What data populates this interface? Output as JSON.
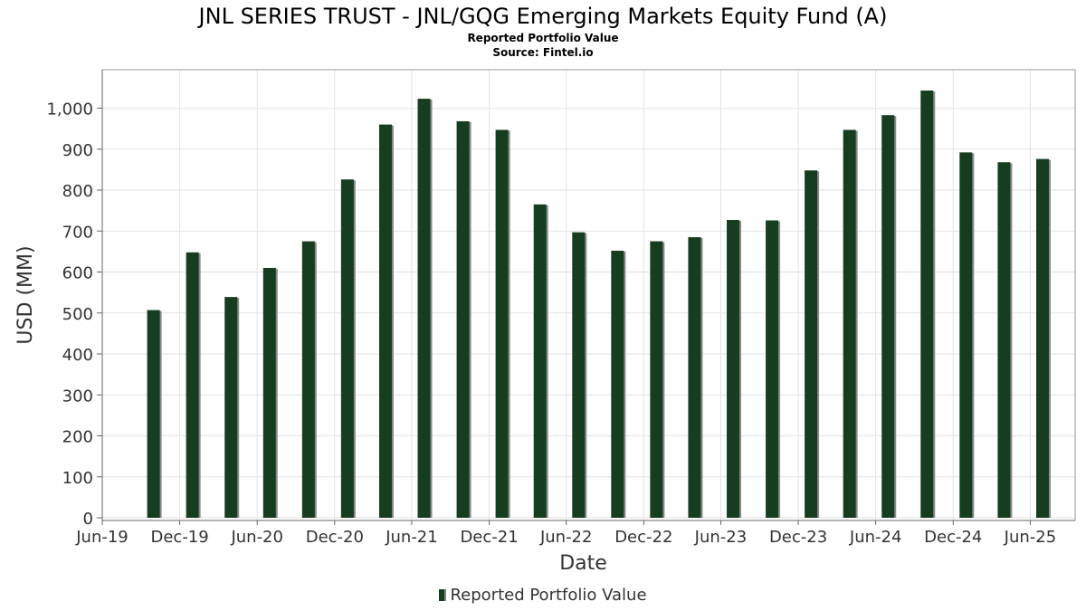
{
  "header": {
    "title": "JNL SERIES TRUST - JNL/GQG Emerging Markets Equity Fund (A)",
    "subtitle": "Reported Portfolio Value",
    "source": "Source: Fintel.io"
  },
  "legend": {
    "label": "Reported Portfolio Value"
  },
  "colors": {
    "bar": "#173d21",
    "bar_shadow": "#8a8a8a",
    "grid": "#e2e2e2",
    "plot_border": "#999999"
  },
  "chart_data": {
    "type": "bar",
    "title": "JNL SERIES TRUST - JNL/GQG Emerging Markets Equity Fund (A)",
    "subtitle": "Reported Portfolio Value",
    "xlabel": "Date",
    "ylabel": "USD (MM)",
    "ylim": [
      0,
      1100
    ],
    "yticks": [
      0,
      100,
      200,
      300,
      400,
      500,
      600,
      700,
      800,
      900,
      1000
    ],
    "ytick_labels": [
      "0",
      "100",
      "200",
      "300",
      "400",
      "500",
      "600",
      "700",
      "800",
      "900",
      "1,000"
    ],
    "xlim": [
      "2019-06-01",
      "2025-09-15"
    ],
    "xticks": [
      {
        "date": "2019-06-01",
        "label": "Jun-19"
      },
      {
        "date": "2019-12-01",
        "label": "Dec-19"
      },
      {
        "date": "2020-06-01",
        "label": "Jun-20"
      },
      {
        "date": "2020-12-01",
        "label": "Dec-20"
      },
      {
        "date": "2021-06-01",
        "label": "Jun-21"
      },
      {
        "date": "2021-12-01",
        "label": "Dec-21"
      },
      {
        "date": "2022-06-01",
        "label": "Jun-22"
      },
      {
        "date": "2022-12-01",
        "label": "Dec-22"
      },
      {
        "date": "2023-06-01",
        "label": "Jun-23"
      },
      {
        "date": "2023-12-01",
        "label": "Dec-23"
      },
      {
        "date": "2024-06-01",
        "label": "Jun-24"
      },
      {
        "date": "2024-12-01",
        "label": "Dec-24"
      },
      {
        "date": "2025-06-01",
        "label": "Jun-25"
      }
    ],
    "grid": true,
    "legend_position": "bottom",
    "series": [
      {
        "name": "Reported Portfolio Value",
        "points": [
          {
            "date": "2019-09-30",
            "value": 507
          },
          {
            "date": "2019-12-31",
            "value": 648
          },
          {
            "date": "2020-03-31",
            "value": 539
          },
          {
            "date": "2020-06-30",
            "value": 610
          },
          {
            "date": "2020-09-30",
            "value": 675
          },
          {
            "date": "2020-12-31",
            "value": 826
          },
          {
            "date": "2021-03-31",
            "value": 960
          },
          {
            "date": "2021-06-30",
            "value": 1023
          },
          {
            "date": "2021-09-30",
            "value": 968
          },
          {
            "date": "2021-12-31",
            "value": 947
          },
          {
            "date": "2022-03-31",
            "value": 765
          },
          {
            "date": "2022-06-30",
            "value": 697
          },
          {
            "date": "2022-09-30",
            "value": 652
          },
          {
            "date": "2022-12-31",
            "value": 675
          },
          {
            "date": "2023-03-31",
            "value": 685
          },
          {
            "date": "2023-06-30",
            "value": 727
          },
          {
            "date": "2023-09-30",
            "value": 726
          },
          {
            "date": "2023-12-31",
            "value": 848
          },
          {
            "date": "2024-03-31",
            "value": 947
          },
          {
            "date": "2024-06-30",
            "value": 983
          },
          {
            "date": "2024-09-30",
            "value": 1043
          },
          {
            "date": "2024-12-31",
            "value": 892
          },
          {
            "date": "2025-03-31",
            "value": 868
          },
          {
            "date": "2025-06-30",
            "value": 876
          }
        ]
      }
    ]
  }
}
